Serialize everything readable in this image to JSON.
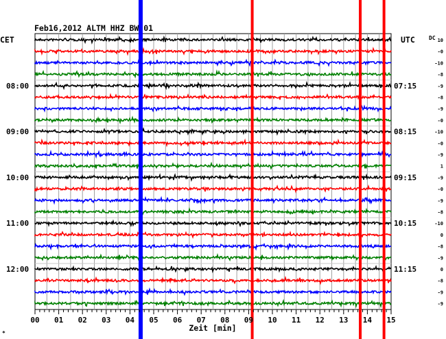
{
  "chart_data": {
    "type": "line",
    "title": "Feb16,2012   ALTM HHZ BW 01",
    "left_axis_label": "CET",
    "right_axis_label": "UTC",
    "dc_label": "DC",
    "xlabel": "Zeit [min]",
    "xlim": [
      0,
      15
    ],
    "x_ticks": [
      "00",
      "01",
      "02",
      "03",
      "04",
      "05",
      "06",
      "07",
      "08",
      "09",
      "10",
      "11",
      "12",
      "13",
      "14",
      "15"
    ],
    "grid": true,
    "trace_colors": [
      "#000000",
      "#ff0000",
      "#0000ff",
      "#008000"
    ],
    "trace_count": 24,
    "left_time_labels": [
      {
        "trace": 4,
        "label": "08:00"
      },
      {
        "trace": 8,
        "label": "09:00"
      },
      {
        "trace": 12,
        "label": "10:00"
      },
      {
        "trace": 16,
        "label": "11:00"
      },
      {
        "trace": 20,
        "label": "12:00"
      }
    ],
    "right_time_labels": [
      {
        "trace": 4,
        "label": "07:15"
      },
      {
        "trace": 8,
        "label": "08:15"
      },
      {
        "trace": 12,
        "label": "09:15"
      },
      {
        "trace": 16,
        "label": "10:15"
      },
      {
        "trace": 20,
        "label": "11:15"
      }
    ],
    "dc_values": [
      "10",
      "-0",
      "-10",
      "-8",
      "-9",
      "-8",
      "-9",
      "-0",
      "-10",
      "-0",
      "-9",
      "1",
      "-9",
      "-0",
      "-9",
      "-8",
      "-10",
      "0",
      "-8",
      "-9",
      "0",
      "-8",
      "-9",
      "-9"
    ],
    "events": [
      {
        "color": "#0000ff",
        "minute": 4.45,
        "from_trace": 0,
        "to_trace": 23
      },
      {
        "color": "#ff0000",
        "minute": 9.15,
        "from_trace": 0,
        "to_trace": 23
      },
      {
        "color": "#ff0000",
        "minute": 13.7,
        "from_trace": 0,
        "to_trace": 23
      },
      {
        "color": "#ff0000",
        "minute": 14.7,
        "from_trace": 0,
        "to_trace": 23
      }
    ]
  },
  "footer_mark": "*"
}
